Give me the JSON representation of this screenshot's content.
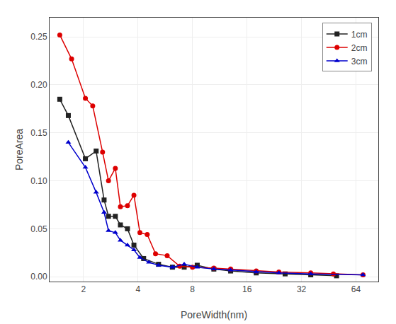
{
  "chart_data": {
    "type": "line",
    "xlabel": "PoreWidth(nm)",
    "ylabel": "PoreArea",
    "log": "x",
    "xlim": [
      1.3,
      85
    ],
    "ylim": [
      -0.005,
      0.27
    ],
    "xticks": [
      2,
      4,
      8,
      16,
      32,
      64
    ],
    "yticks": [
      {
        "value": 0.0,
        "label": "0.00"
      },
      {
        "value": 0.05,
        "label": "0.05"
      },
      {
        "value": 0.1,
        "label": "0.10"
      },
      {
        "value": 0.15,
        "label": "0.15"
      },
      {
        "value": 0.2,
        "label": "0.20"
      },
      {
        "value": 0.25,
        "label": "0.25"
      }
    ],
    "grid": true,
    "legend": "upper right",
    "series": [
      {
        "name": "1cm",
        "color": "#222222",
        "marker": "square",
        "x": [
          1.48,
          1.65,
          2.05,
          2.35,
          2.6,
          2.75,
          3.0,
          3.2,
          3.5,
          3.8,
          4.3,
          5.2,
          6.2,
          7.2,
          8.5,
          10.5,
          13.0,
          18.0,
          26.0,
          36.0,
          50.0
        ],
        "values": [
          0.185,
          0.168,
          0.123,
          0.131,
          0.08,
          0.063,
          0.063,
          0.054,
          0.05,
          0.033,
          0.019,
          0.013,
          0.01,
          0.01,
          0.012,
          0.008,
          0.006,
          0.004,
          0.003,
          0.002,
          0.001
        ]
      },
      {
        "name": "2cm",
        "color": "#dd0000",
        "marker": "circle",
        "x": [
          1.48,
          1.72,
          2.05,
          2.25,
          2.55,
          2.75,
          3.0,
          3.2,
          3.5,
          3.8,
          4.1,
          4.5,
          5.0,
          5.8,
          6.8,
          8.0,
          10.5,
          13.0,
          18.0,
          24.0,
          36.0,
          48.0,
          70.0
        ],
        "values": [
          0.252,
          0.227,
          0.186,
          0.178,
          0.13,
          0.1,
          0.113,
          0.073,
          0.074,
          0.085,
          0.046,
          0.044,
          0.024,
          0.022,
          0.011,
          0.01,
          0.009,
          0.008,
          0.006,
          0.005,
          0.004,
          0.003,
          0.002
        ]
      },
      {
        "name": "3cm",
        "color": "#0000cc",
        "marker": "triangle-up",
        "x": [
          1.65,
          2.05,
          2.35,
          2.6,
          2.75,
          3.0,
          3.2,
          3.5,
          3.8,
          4.1,
          4.6,
          5.2,
          6.2,
          7.2,
          8.5,
          10.5,
          13.0,
          18.0,
          24.0,
          36.0,
          70.0
        ],
        "values": [
          0.14,
          0.114,
          0.088,
          0.067,
          0.048,
          0.046,
          0.038,
          0.033,
          0.028,
          0.02,
          0.015,
          0.012,
          0.01,
          0.013,
          0.01,
          0.008,
          0.007,
          0.005,
          0.004,
          0.003,
          0.002
        ]
      }
    ]
  }
}
